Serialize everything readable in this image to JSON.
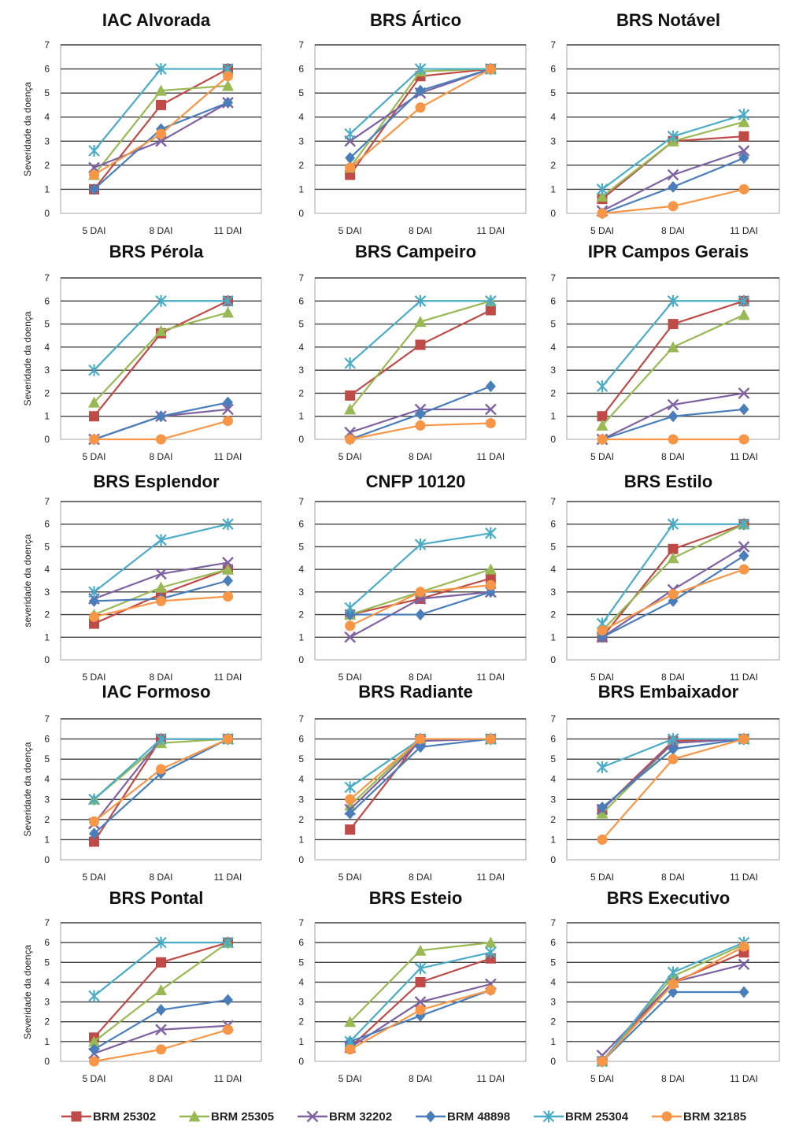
{
  "legend": [
    {
      "name": "BRM 25302",
      "color": "#be4b48",
      "marker": "square"
    },
    {
      "name": "BRM 25305",
      "color": "#98b954",
      "marker": "triangle"
    },
    {
      "name": "BRM 32202",
      "color": "#7e62a1",
      "marker": "x"
    },
    {
      "name": "BRM 48898",
      "color": "#4a7ebb",
      "marker": "diamond"
    },
    {
      "name": "BRM 25304",
      "color": "#4bacc6",
      "marker": "star"
    },
    {
      "name": "BRM 32185",
      "color": "#f79646",
      "marker": "circle"
    }
  ],
  "chart_data": [
    {
      "type": "line",
      "title": "IAC Alvorada",
      "ylabel": "Severidade da doença",
      "categories": [
        "5 DAI",
        "8 DAI",
        "11 DAI"
      ],
      "ylim": [
        0,
        7
      ],
      "yticks": [
        "0",
        "1",
        "2",
        "3",
        "4",
        "5",
        "6",
        "7"
      ],
      "grid": true,
      "series": [
        {
          "name": "BRM 25302",
          "values": [
            1.0,
            4.5,
            6.0
          ]
        },
        {
          "name": "BRM 25305",
          "values": [
            1.6,
            5.1,
            5.3
          ]
        },
        {
          "name": "BRM 32202",
          "values": [
            1.9,
            3.0,
            4.6
          ]
        },
        {
          "name": "BRM 48898",
          "values": [
            1.0,
            3.5,
            4.6
          ]
        },
        {
          "name": "BRM 25304",
          "values": [
            2.6,
            6.0,
            6.0
          ]
        },
        {
          "name": "BRM 32185",
          "values": [
            1.6,
            3.3,
            5.7
          ]
        }
      ]
    },
    {
      "type": "line",
      "title": "BRS Ártico",
      "ylabel": "",
      "categories": [
        "5 DAI",
        "8 DAI",
        "11 DAI"
      ],
      "ylim": [
        0,
        7
      ],
      "yticks": [
        "0",
        "1",
        "2",
        "3",
        "4",
        "5",
        "6",
        "7"
      ],
      "grid": true,
      "series": [
        {
          "name": "BRM 25302",
          "values": [
            1.6,
            5.7,
            6.0
          ]
        },
        {
          "name": "BRM 25305",
          "values": [
            1.9,
            5.9,
            6.0
          ]
        },
        {
          "name": "BRM 32202",
          "values": [
            3.0,
            5.0,
            6.0
          ]
        },
        {
          "name": "BRM 48898",
          "values": [
            2.3,
            5.1,
            6.0
          ]
        },
        {
          "name": "BRM 25304",
          "values": [
            3.3,
            6.0,
            6.0
          ]
        },
        {
          "name": "BRM 32185",
          "values": [
            1.9,
            4.4,
            6.0
          ]
        }
      ]
    },
    {
      "type": "line",
      "title": "BRS Notável",
      "ylabel": "",
      "categories": [
        "5 DAI",
        "8 DAI",
        "11 DAI"
      ],
      "ylim": [
        0,
        7
      ],
      "yticks": [
        "0",
        "1",
        "2",
        "3",
        "4",
        "5",
        "6",
        "7"
      ],
      "grid": true,
      "series": [
        {
          "name": "BRM 25302",
          "values": [
            0.6,
            3.0,
            3.2
          ]
        },
        {
          "name": "BRM 25305",
          "values": [
            0.7,
            3.0,
            3.8
          ]
        },
        {
          "name": "BRM 32202",
          "values": [
            0.1,
            1.6,
            2.6
          ]
        },
        {
          "name": "BRM 48898",
          "values": [
            0.0,
            1.1,
            2.3
          ]
        },
        {
          "name": "BRM 25304",
          "values": [
            1.0,
            3.2,
            4.1
          ]
        },
        {
          "name": "BRM 32185",
          "values": [
            0.0,
            0.3,
            1.0
          ]
        }
      ]
    },
    {
      "type": "line",
      "title": "BRS Pérola",
      "ylabel": "Severidade da doença",
      "categories": [
        "5 DAI",
        "8 DAI",
        "11 DAI"
      ],
      "ylim": [
        0,
        7
      ],
      "yticks": [
        "0",
        "1",
        "2",
        "3",
        "4",
        "5",
        "6",
        "7"
      ],
      "grid": true,
      "series": [
        {
          "name": "BRM 25302",
          "values": [
            1.0,
            4.6,
            6.0
          ]
        },
        {
          "name": "BRM 25305",
          "values": [
            1.6,
            4.7,
            5.5
          ]
        },
        {
          "name": "BRM 32202",
          "values": [
            0.0,
            1.0,
            1.3
          ]
        },
        {
          "name": "BRM 48898",
          "values": [
            0.0,
            1.0,
            1.6
          ]
        },
        {
          "name": "BRM 25304",
          "values": [
            3.0,
            6.0,
            6.0
          ]
        },
        {
          "name": "BRM 32185",
          "values": [
            0.0,
            0.0,
            0.8
          ]
        }
      ]
    },
    {
      "type": "line",
      "title": "BRS Campeiro",
      "ylabel": "",
      "categories": [
        "5 DAI",
        "8 DAI",
        "11 DAI"
      ],
      "ylim": [
        0,
        7
      ],
      "yticks": [
        "0",
        "1",
        "2",
        "3",
        "4",
        "5",
        "6",
        "7"
      ],
      "grid": true,
      "series": [
        {
          "name": "BRM 25302",
          "values": [
            1.9,
            4.1,
            5.6
          ]
        },
        {
          "name": "BRM 25305",
          "values": [
            1.3,
            5.1,
            6.0
          ]
        },
        {
          "name": "BRM 32202",
          "values": [
            0.3,
            1.3,
            1.3
          ]
        },
        {
          "name": "BRM 48898",
          "values": [
            0.0,
            1.1,
            2.3
          ]
        },
        {
          "name": "BRM 25304",
          "values": [
            3.3,
            6.0,
            6.0
          ]
        },
        {
          "name": "BRM 32185",
          "values": [
            0.0,
            0.6,
            0.7
          ]
        }
      ]
    },
    {
      "type": "line",
      "title": "IPR Campos Gerais",
      "ylabel": "",
      "categories": [
        "5 DAI",
        "8 DAI",
        "11 DAI"
      ],
      "ylim": [
        0,
        7
      ],
      "yticks": [
        "0",
        "1",
        "2",
        "3",
        "4",
        "5",
        "6",
        "7"
      ],
      "grid": true,
      "series": [
        {
          "name": "BRM 25302",
          "values": [
            1.0,
            5.0,
            6.0
          ]
        },
        {
          "name": "BRM 25305",
          "values": [
            0.6,
            4.0,
            5.4
          ]
        },
        {
          "name": "BRM 32202",
          "values": [
            0.0,
            1.5,
            2.0
          ]
        },
        {
          "name": "BRM 48898",
          "values": [
            0.0,
            1.0,
            1.3
          ]
        },
        {
          "name": "BRM 25304",
          "values": [
            2.3,
            6.0,
            6.0
          ]
        },
        {
          "name": "BRM 32185",
          "values": [
            0.0,
            0.0,
            0.0
          ]
        }
      ]
    },
    {
      "type": "line",
      "title": "BRS Esplendor",
      "ylabel": "severidade da doença",
      "categories": [
        "5 DAI",
        "8 DAI",
        "11 DAI"
      ],
      "ylim": [
        0,
        7
      ],
      "yticks": [
        "0",
        "1",
        "2",
        "3",
        "4",
        "5",
        "6",
        "7"
      ],
      "grid": true,
      "series": [
        {
          "name": "BRM 25302",
          "values": [
            1.6,
            2.9,
            4.0
          ]
        },
        {
          "name": "BRM 25305",
          "values": [
            2.0,
            3.2,
            4.0
          ]
        },
        {
          "name": "BRM 32202",
          "values": [
            2.7,
            3.8,
            4.3
          ]
        },
        {
          "name": "BRM 48898",
          "values": [
            2.6,
            2.7,
            3.5
          ]
        },
        {
          "name": "BRM 25304",
          "values": [
            3.0,
            5.3,
            6.0
          ]
        },
        {
          "name": "BRM 32185",
          "values": [
            1.9,
            2.6,
            2.8
          ]
        }
      ]
    },
    {
      "type": "line",
      "title": "CNFP 10120",
      "ylabel": "",
      "categories": [
        "5 DAI",
        "8 DAI",
        "11 DAI"
      ],
      "ylim": [
        0,
        7
      ],
      "yticks": [
        "0",
        "1",
        "2",
        "3",
        "4",
        "5",
        "6",
        "7"
      ],
      "grid": true,
      "series": [
        {
          "name": "BRM 25302",
          "values": [
            2.0,
            2.7,
            3.6
          ]
        },
        {
          "name": "BRM 25305",
          "values": [
            2.0,
            3.0,
            4.0
          ]
        },
        {
          "name": "BRM 32202",
          "values": [
            1.0,
            2.7,
            3.0
          ]
        },
        {
          "name": "BRM 48898",
          "values": [
            2.0,
            2.0,
            3.0
          ]
        },
        {
          "name": "BRM 25304",
          "values": [
            2.3,
            5.1,
            5.6
          ]
        },
        {
          "name": "BRM 32185",
          "values": [
            1.5,
            3.0,
            3.3
          ]
        }
      ]
    },
    {
      "type": "line",
      "title": "BRS Estilo",
      "ylabel": "",
      "categories": [
        "5 DAI",
        "8 DAI",
        "11 DAI"
      ],
      "ylim": [
        0,
        7
      ],
      "yticks": [
        "0",
        "1",
        "2",
        "3",
        "4",
        "5",
        "6",
        "7"
      ],
      "grid": true,
      "series": [
        {
          "name": "BRM 25302",
          "values": [
            1.0,
            4.9,
            6.0
          ]
        },
        {
          "name": "BRM 25305",
          "values": [
            1.3,
            4.5,
            6.0
          ]
        },
        {
          "name": "BRM 32202",
          "values": [
            1.0,
            3.1,
            5.0
          ]
        },
        {
          "name": "BRM 48898",
          "values": [
            1.0,
            2.6,
            4.6
          ]
        },
        {
          "name": "BRM 25304",
          "values": [
            1.6,
            6.0,
            6.0
          ]
        },
        {
          "name": "BRM 32185",
          "values": [
            1.3,
            2.9,
            4.0
          ]
        }
      ]
    },
    {
      "type": "line",
      "title": "IAC Formoso",
      "ylabel": "Severidade da doença",
      "categories": [
        "5 DAI",
        "8 DAI",
        "11 DAI"
      ],
      "ylim": [
        0,
        7
      ],
      "yticks": [
        "0",
        "1",
        "2",
        "3",
        "4",
        "5",
        "6",
        "7"
      ],
      "grid": true,
      "series": [
        {
          "name": "BRM 25302",
          "values": [
            0.9,
            6.0,
            6.0
          ]
        },
        {
          "name": "BRM 25305",
          "values": [
            3.0,
            5.8,
            6.0
          ]
        },
        {
          "name": "BRM 32202",
          "values": [
            1.8,
            6.0,
            6.0
          ]
        },
        {
          "name": "BRM 48898",
          "values": [
            1.3,
            4.3,
            6.0
          ]
        },
        {
          "name": "BRM 25304",
          "values": [
            3.0,
            6.0,
            6.0
          ]
        },
        {
          "name": "BRM 32185",
          "values": [
            1.9,
            4.5,
            6.0
          ]
        }
      ]
    },
    {
      "type": "line",
      "title": "BRS Radiante",
      "ylabel": "",
      "categories": [
        "5 DAI",
        "8 DAI",
        "11 DAI"
      ],
      "ylim": [
        0,
        7
      ],
      "yticks": [
        "0",
        "1",
        "2",
        "3",
        "4",
        "5",
        "6",
        "7"
      ],
      "grid": true,
      "series": [
        {
          "name": "BRM 25302",
          "values": [
            1.5,
            6.0,
            6.0
          ]
        },
        {
          "name": "BRM 25305",
          "values": [
            2.7,
            6.0,
            6.0
          ]
        },
        {
          "name": "BRM 32202",
          "values": [
            2.5,
            5.9,
            6.0
          ]
        },
        {
          "name": "BRM 48898",
          "values": [
            2.3,
            5.6,
            6.0
          ]
        },
        {
          "name": "BRM 25304",
          "values": [
            3.6,
            6.0,
            6.0
          ]
        },
        {
          "name": "BRM 32185",
          "values": [
            3.0,
            6.0,
            6.0
          ]
        }
      ]
    },
    {
      "type": "line",
      "title": "BRS Embaixador",
      "ylabel": "",
      "categories": [
        "5 DAI",
        "8 DAI",
        "11 DAI"
      ],
      "ylim": [
        0,
        7
      ],
      "yticks": [
        "0",
        "1",
        "2",
        "3",
        "4",
        "5",
        "6",
        "7"
      ],
      "grid": true,
      "series": [
        {
          "name": "BRM 25302",
          "values": [
            2.5,
            5.9,
            6.0
          ]
        },
        {
          "name": "BRM 25305",
          "values": [
            2.3,
            5.8,
            6.0
          ]
        },
        {
          "name": "BRM 32202",
          "values": [
            2.5,
            5.8,
            6.0
          ]
        },
        {
          "name": "BRM 48898",
          "values": [
            2.6,
            5.5,
            6.0
          ]
        },
        {
          "name": "BRM 25304",
          "values": [
            4.6,
            6.0,
            6.0
          ]
        },
        {
          "name": "BRM 32185",
          "values": [
            1.0,
            5.0,
            6.0
          ]
        }
      ]
    },
    {
      "type": "line",
      "title": "BRS Pontal",
      "ylabel": "Severidade da doença",
      "categories": [
        "5 DAI",
        "8 DAI",
        "11 DAI"
      ],
      "ylim": [
        0,
        7
      ],
      "yticks": [
        "0",
        "1",
        "2",
        "3",
        "4",
        "5",
        "6",
        "7"
      ],
      "grid": true,
      "series": [
        {
          "name": "BRM 25302",
          "values": [
            1.2,
            5.0,
            6.0
          ]
        },
        {
          "name": "BRM 25305",
          "values": [
            1.0,
            3.6,
            6.0
          ]
        },
        {
          "name": "BRM 32202",
          "values": [
            0.4,
            1.6,
            1.8
          ]
        },
        {
          "name": "BRM 48898",
          "values": [
            0.6,
            2.6,
            3.1
          ]
        },
        {
          "name": "BRM 25304",
          "values": [
            3.3,
            6.0,
            6.0
          ]
        },
        {
          "name": "BRM 32185",
          "values": [
            0.0,
            0.6,
            1.6
          ]
        }
      ]
    },
    {
      "type": "line",
      "title": "BRS Esteio",
      "ylabel": "",
      "categories": [
        "5 DAI",
        "8 DAI",
        "11 DAI"
      ],
      "ylim": [
        0,
        7
      ],
      "yticks": [
        "0",
        "1",
        "2",
        "3",
        "4",
        "5",
        "6",
        "7"
      ],
      "grid": true,
      "series": [
        {
          "name": "BRM 25302",
          "values": [
            0.7,
            4.0,
            5.2
          ]
        },
        {
          "name": "BRM 25305",
          "values": [
            2.0,
            5.6,
            6.0
          ]
        },
        {
          "name": "BRM 32202",
          "values": [
            0.7,
            3.0,
            3.9
          ]
        },
        {
          "name": "BRM 48898",
          "values": [
            1.0,
            2.3,
            3.6
          ]
        },
        {
          "name": "BRM 25304",
          "values": [
            1.0,
            4.7,
            5.5
          ]
        },
        {
          "name": "BRM 32185",
          "values": [
            0.6,
            2.6,
            3.6
          ]
        }
      ]
    },
    {
      "type": "line",
      "title": "BRS Executivo",
      "ylabel": "",
      "categories": [
        "5 DAI",
        "8 DAI",
        "11 DAI"
      ],
      "ylim": [
        0,
        7
      ],
      "yticks": [
        "0",
        "1",
        "2",
        "3",
        "4",
        "5",
        "6",
        "7"
      ],
      "grid": true,
      "series": [
        {
          "name": "BRM 25302",
          "values": [
            0.0,
            4.0,
            5.5
          ]
        },
        {
          "name": "BRM 25305",
          "values": [
            0.0,
            4.3,
            5.9
          ]
        },
        {
          "name": "BRM 32202",
          "values": [
            0.3,
            4.0,
            4.9
          ]
        },
        {
          "name": "BRM 48898",
          "values": [
            0.0,
            3.5,
            3.5
          ]
        },
        {
          "name": "BRM 25304",
          "values": [
            0.0,
            4.5,
            6.0
          ]
        },
        {
          "name": "BRM 32185",
          "values": [
            0.0,
            3.9,
            5.8
          ]
        }
      ]
    }
  ]
}
